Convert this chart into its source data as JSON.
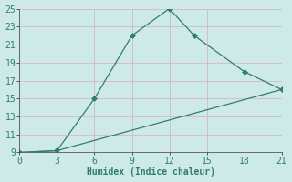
{
  "xlabel": "Humidex (Indice chaleur)",
  "line1_x": [
    0,
    3,
    6,
    9,
    12,
    14,
    18,
    21
  ],
  "line1_y": [
    9,
    9.2,
    15,
    22,
    25,
    22,
    18,
    16
  ],
  "line2_x": [
    0,
    3,
    21
  ],
  "line2_y": [
    9,
    9.2,
    16
  ],
  "line_color": "#2e7d72",
  "bg_color": "#ceeae8",
  "grid_color": "#b8d8d5",
  "xlim": [
    0,
    21
  ],
  "ylim": [
    9,
    25
  ],
  "xticks": [
    0,
    3,
    6,
    9,
    12,
    15,
    18,
    21
  ],
  "yticks": [
    9,
    11,
    13,
    15,
    17,
    19,
    21,
    23,
    25
  ],
  "marker": "D",
  "marker_size": 3,
  "linewidth": 0.9,
  "font_size": 7.0
}
